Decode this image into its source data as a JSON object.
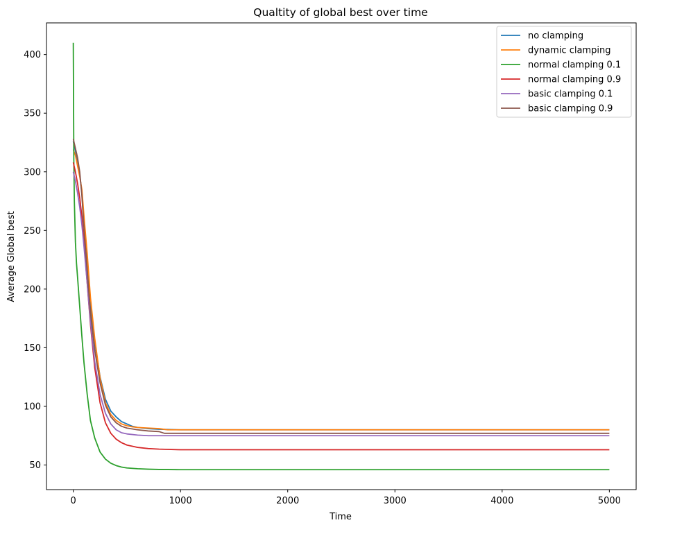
{
  "chart_data": {
    "type": "line",
    "title": "Qualtity of global best over time",
    "xlabel": "Time",
    "ylabel": "Average Global best",
    "xlim": [
      -250,
      5250
    ],
    "ylim": [
      29,
      427
    ],
    "xticks": [
      0,
      1000,
      2000,
      3000,
      4000,
      5000
    ],
    "xtick_labels": [
      "0",
      "1000",
      "2000",
      "3000",
      "4000",
      "5000"
    ],
    "yticks": [
      50,
      100,
      150,
      200,
      250,
      300,
      350,
      400
    ],
    "ytick_labels": [
      "50",
      "100",
      "150",
      "200",
      "250",
      "300",
      "350",
      "400"
    ],
    "grid": false,
    "legend_position": "top-right",
    "series": [
      {
        "name": "no clamping",
        "color": "#1f77b4",
        "x": [
          0,
          20,
          40,
          60,
          80,
          100,
          130,
          160,
          200,
          250,
          300,
          350,
          400,
          450,
          500,
          550,
          600,
          700,
          800,
          1000,
          2000,
          3000,
          4000,
          5000
        ],
        "y": [
          326,
          318,
          308,
          298,
          282,
          255,
          222,
          188,
          155,
          125,
          106,
          96,
          91,
          87,
          85,
          83,
          82,
          81,
          80.5,
          80,
          80,
          80,
          80,
          80
        ]
      },
      {
        "name": "dynamic clamping",
        "color": "#ff7f0e",
        "x": [
          0,
          20,
          40,
          60,
          80,
          100,
          130,
          160,
          200,
          250,
          300,
          350,
          400,
          450,
          500,
          550,
          600,
          700,
          800,
          880,
          1000,
          2000,
          3000,
          4000,
          5000
        ],
        "y": [
          319,
          314,
          305,
          296,
          285,
          262,
          230,
          193,
          158,
          124,
          103,
          93,
          88,
          85,
          83.5,
          82.5,
          82,
          81.5,
          81,
          80,
          80,
          80,
          80,
          80,
          80
        ]
      },
      {
        "name": "normal clamping 0.1",
        "color": "#2ca02c",
        "x": [
          0,
          5,
          10,
          20,
          30,
          40,
          60,
          80,
          100,
          130,
          160,
          200,
          250,
          300,
          350,
          400,
          450,
          500,
          600,
          700,
          800,
          1000,
          2000,
          3000,
          4000,
          5000
        ],
        "y": [
          410,
          310,
          275,
          240,
          222,
          210,
          185,
          160,
          137,
          110,
          88,
          73,
          61,
          55,
          51.5,
          49.5,
          48.2,
          47.5,
          46.8,
          46.4,
          46.2,
          46,
          46,
          46,
          46,
          46
        ]
      },
      {
        "name": "normal clamping 0.9",
        "color": "#d62728",
        "x": [
          0,
          20,
          40,
          60,
          80,
          100,
          130,
          160,
          200,
          250,
          300,
          350,
          400,
          450,
          500,
          600,
          700,
          800,
          1000,
          2000,
          3000,
          4000,
          5000
        ],
        "y": [
          308,
          300,
          290,
          278,
          262,
          240,
          205,
          170,
          133,
          103,
          86,
          77,
          72,
          69,
          67,
          65,
          64,
          63.5,
          63,
          63,
          63,
          63,
          63
        ]
      },
      {
        "name": "basic clamping 0.1",
        "color": "#9467bd",
        "x": [
          0,
          20,
          40,
          60,
          80,
          100,
          130,
          160,
          200,
          250,
          300,
          350,
          400,
          450,
          500,
          600,
          700,
          800,
          1000,
          2000,
          3000,
          4000,
          5000
        ],
        "y": [
          300,
          292,
          282,
          270,
          255,
          236,
          205,
          172,
          138,
          110,
          94,
          85,
          80,
          77.5,
          76.5,
          75.5,
          75,
          75,
          75,
          75,
          75,
          75,
          75
        ]
      },
      {
        "name": "basic clamping 0.9",
        "color": "#8c564b",
        "x": [
          0,
          20,
          40,
          60,
          80,
          100,
          130,
          160,
          200,
          250,
          300,
          350,
          400,
          450,
          500,
          600,
          700,
          800,
          850,
          1000,
          2000,
          3000,
          4000,
          5000
        ],
        "y": [
          328,
          320,
          312,
          300,
          280,
          252,
          215,
          180,
          148,
          120,
          101,
          91,
          86,
          83,
          81.5,
          80,
          79,
          78.5,
          77,
          77,
          77,
          77,
          77,
          77
        ]
      }
    ]
  }
}
